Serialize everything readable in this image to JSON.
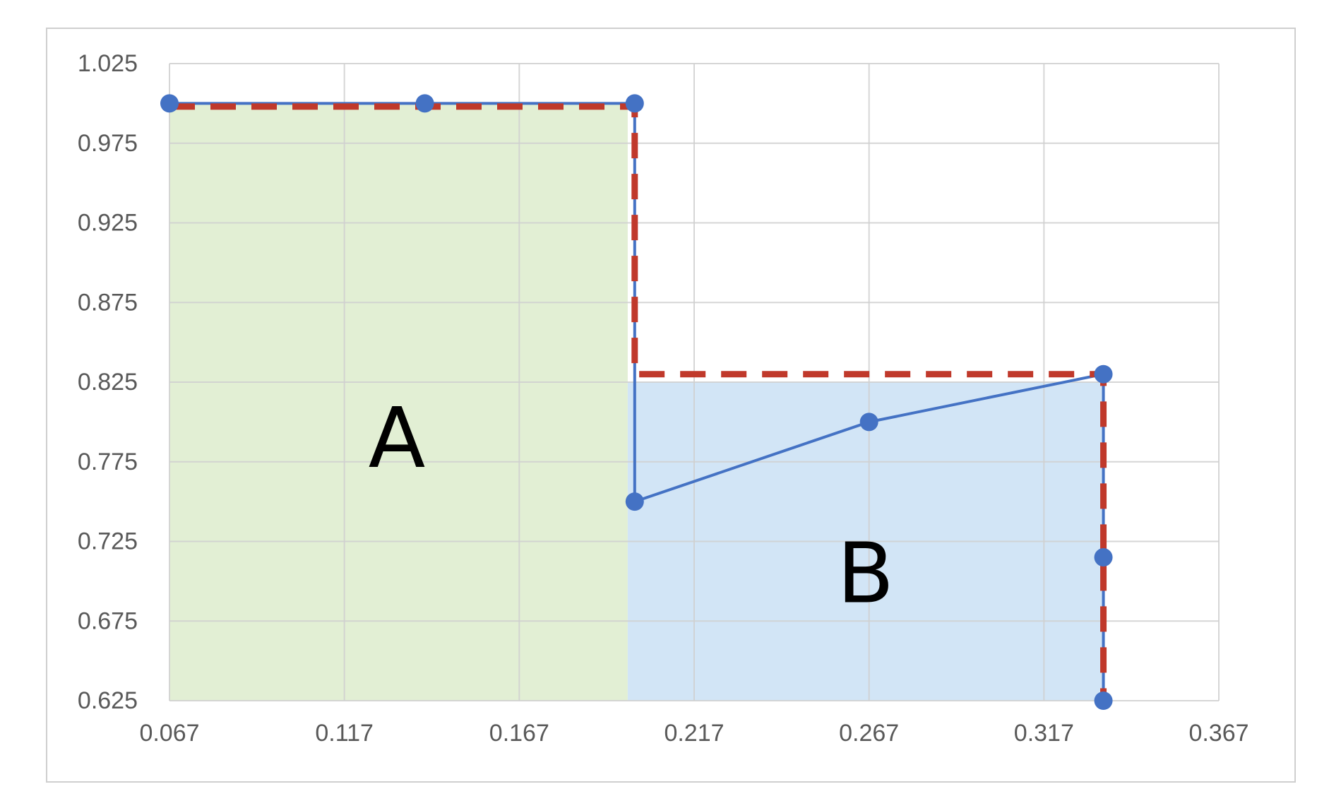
{
  "chart_data": {
    "type": "line",
    "title": "",
    "xlabel": "",
    "ylabel": "",
    "xlim": [
      0.067,
      0.367
    ],
    "ylim": [
      0.625,
      1.025
    ],
    "x_ticks": [
      "0.067",
      "0.117",
      "0.167",
      "0.217",
      "0.267",
      "0.317",
      "0.367"
    ],
    "y_ticks": [
      "1.025",
      "0.975",
      "0.925",
      "0.875",
      "0.825",
      "0.775",
      "0.725",
      "0.675",
      "0.625"
    ],
    "grid": true,
    "legend": "none",
    "series": [
      {
        "style": "solid line with circle markers",
        "color": "#4472C4",
        "x": [
          0.067,
          0.14,
          0.2,
          0.2,
          0.267,
          0.334,
          0.334,
          0.334
        ],
        "y": [
          1.0,
          1.0,
          1.0,
          0.75,
          0.8,
          0.83,
          0.715,
          0.625
        ]
      },
      {
        "style": "dashed line",
        "color": "#C0392B",
        "x": [
          0.067,
          0.2,
          0.2,
          0.334,
          0.334
        ],
        "y": [
          0.998,
          0.998,
          0.83,
          0.83,
          0.625
        ]
      }
    ],
    "regions": [
      {
        "label": "A",
        "color": "#E2EFD4",
        "x": [
          0.067,
          0.198
        ],
        "y": [
          0.625,
          1.0
        ],
        "label_pos": [
          0.132,
          0.79
        ]
      },
      {
        "label": "B",
        "color": "#D2E5F6",
        "x": [
          0.198,
          0.334
        ],
        "y": [
          0.625,
          0.825
        ],
        "label_pos": [
          0.266,
          0.705
        ]
      }
    ]
  }
}
